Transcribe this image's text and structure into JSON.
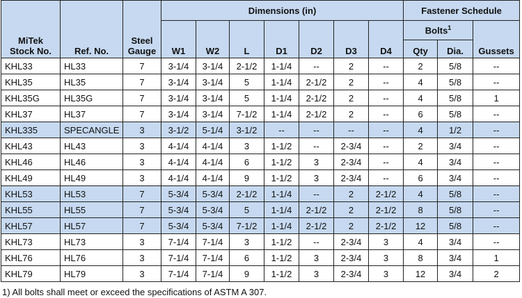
{
  "table": {
    "header": {
      "stock_no": [
        "MiTek",
        "Stock No."
      ],
      "ref_no": "Ref. No.",
      "gauge": [
        "Steel",
        "Gauge"
      ],
      "dimensions": "Dimensions (in)",
      "fastener": "Fastener Schedule",
      "dims": [
        "W1",
        "W2",
        "L",
        "D1",
        "D2",
        "D3",
        "D4"
      ],
      "bolts": "Bolts",
      "bolts_note": "1",
      "qty": "Qty",
      "dia": "Dia.",
      "gussets": "Gussets"
    },
    "rows": [
      [
        "KHL33",
        "HL33",
        "7",
        "3-1/4",
        "3-1/4",
        "2-1/2",
        "1-1/4",
        "--",
        "2",
        "--",
        "2",
        "5/8",
        "--"
      ],
      [
        "KHL35",
        "HL35",
        "7",
        "3-1/4",
        "3-1/4",
        "5",
        "1-1/4",
        "2-1/2",
        "2",
        "--",
        "4",
        "5/8",
        "--"
      ],
      [
        "KHL35G",
        "HL35G",
        "7",
        "3-1/4",
        "3-1/4",
        "5",
        "1-1/4",
        "2-1/2",
        "2",
        "--",
        "4",
        "5/8",
        "1"
      ],
      [
        "KHL37",
        "HL37",
        "7",
        "3-1/4",
        "3-1/4",
        "7-1/2",
        "1-1/4",
        "2-1/2",
        "2",
        "--",
        "6",
        "5/8",
        "--"
      ],
      [
        "KHL335",
        "SPECANGLE",
        "3",
        "3-1/2",
        "5-1/4",
        "3-1/2",
        "--",
        "--",
        "--",
        "--",
        "4",
        "1/2",
        "--"
      ],
      [
        "KHL43",
        "HL43",
        "3",
        "4-1/4",
        "4-1/4",
        "3",
        "1-1/2",
        "--",
        "2-3/4",
        "--",
        "2",
        "3/4",
        "--"
      ],
      [
        "KHL46",
        "HL46",
        "3",
        "4-1/4",
        "4-1/4",
        "6",
        "1-1/2",
        "3",
        "2-3/4",
        "--",
        "4",
        "3/4",
        "--"
      ],
      [
        "KHL49",
        "HL49",
        "3",
        "4-1/4",
        "4-1/4",
        "9",
        "1-1/2",
        "3",
        "2-3/4",
        "--",
        "6",
        "3/4",
        "--"
      ],
      [
        "KHL53",
        "HL53",
        "7",
        "5-3/4",
        "5-3/4",
        "2-1/2",
        "1-1/4",
        "--",
        "2",
        "2-1/2",
        "4",
        "5/8",
        "--"
      ],
      [
        "KHL55",
        "HL55",
        "7",
        "5-3/4",
        "5-3/4",
        "5",
        "1-1/4",
        "2-1/2",
        "2",
        "2-1/2",
        "8",
        "5/8",
        "--"
      ],
      [
        "KHL57",
        "HL57",
        "7",
        "5-3/4",
        "5-3/4",
        "7-1/2",
        "1-1/4",
        "2-1/2",
        "2",
        "2-1/2",
        "12",
        "5/8",
        "--"
      ],
      [
        "KHL73",
        "HL73",
        "3",
        "7-1/4",
        "7-1/4",
        "3",
        "1-1/2",
        "--",
        "2-3/4",
        "3",
        "4",
        "3/4",
        "--"
      ],
      [
        "KHL76",
        "HL76",
        "3",
        "7-1/4",
        "7-1/4",
        "6",
        "1-1/2",
        "3",
        "2-3/4",
        "3",
        "8",
        "3/4",
        "1"
      ],
      [
        "KHL79",
        "HL79",
        "3",
        "7-1/4",
        "7-1/4",
        "9",
        "1-1/2",
        "3",
        "2-3/4",
        "3",
        "12",
        "3/4",
        "2"
      ]
    ]
  },
  "footnote": "1) All bolts shall meet or exceed the specifications of ASTM A 307."
}
